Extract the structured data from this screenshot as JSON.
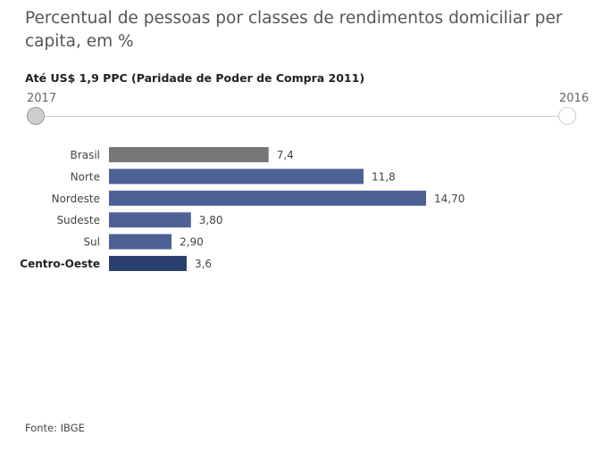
{
  "title": "Percentual de pessoas por classes de rendimentos domiciliar per capita, em %",
  "subtitle": "Até US$ 1,9 PPC (Paridade de Poder de Compra 2011)",
  "timeline": {
    "start_label": "2017",
    "end_label": "2016",
    "selected": "2017"
  },
  "source": "Fonte: IBGE",
  "colors": {
    "highlight": "#777777",
    "region": "#4d6195",
    "emphasis": "#2a3f70"
  },
  "chart_data": {
    "type": "bar",
    "orientation": "horizontal",
    "categories": [
      "Brasil",
      "Norte",
      "Nordeste",
      "Sudeste",
      "Sul",
      "Centro-Oeste"
    ],
    "values": [
      7.4,
      11.8,
      14.7,
      3.8,
      2.9,
      3.6
    ],
    "value_labels": [
      "7,4",
      "11,8",
      "14,70",
      "3,80",
      "2,90",
      "3,6"
    ],
    "bar_colors": [
      "#777777",
      "#4d6195",
      "#4d6195",
      "#4d6195",
      "#4d6195",
      "#2a3f70"
    ],
    "bold_categories": [
      "Centro-Oeste"
    ],
    "xlim": [
      0,
      15
    ],
    "grid": false
  }
}
